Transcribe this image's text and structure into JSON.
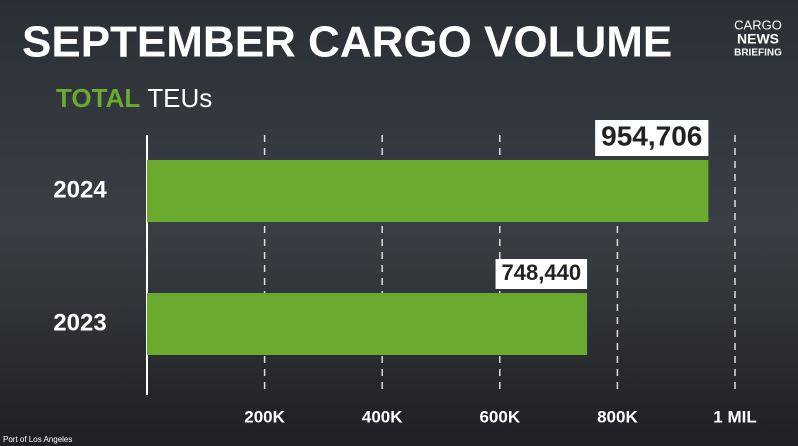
{
  "chart_data": {
    "type": "bar",
    "orientation": "horizontal",
    "title": "SEPTEMBER CARGO VOLUME",
    "subtitle_highlight": "TOTAL",
    "subtitle": "TEUs",
    "brand": [
      "CARGO",
      "NEWS",
      "BRIEFING"
    ],
    "source": "Port of Los Angeles",
    "categories": [
      "2024",
      "2023"
    ],
    "values": [
      954706,
      748440
    ],
    "value_labels": [
      "954,706",
      "748,440"
    ],
    "color": "#6aaa2e",
    "xlim": [
      0,
      1000000
    ],
    "xticks": [
      {
        "value": 200000,
        "label": "200K"
      },
      {
        "value": 400000,
        "label": "400K"
      },
      {
        "value": 600000,
        "label": "600K"
      },
      {
        "value": 800000,
        "label": "800K"
      },
      {
        "value": 1000000,
        "label": "1 MIL"
      }
    ],
    "grid": true
  }
}
